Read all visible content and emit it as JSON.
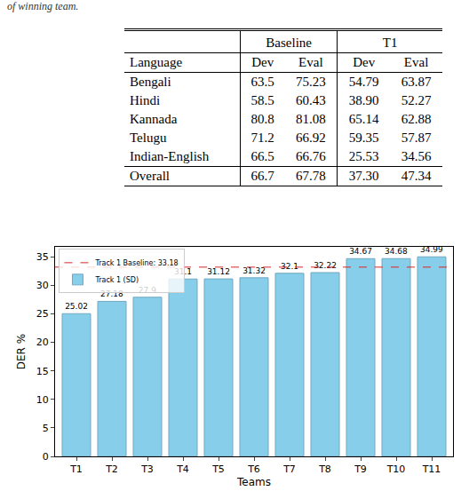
{
  "caption": "of winning team.",
  "table": {
    "header": [
      "",
      "Baseline",
      "T1"
    ],
    "subheader": [
      "Language",
      "Dev",
      "Eval",
      "Dev",
      "Eval"
    ],
    "rows": [
      [
        "Bengali",
        "63.5",
        "75.23",
        "54.79",
        "63.87"
      ],
      [
        "Hindi",
        "58.5",
        "60.43",
        "38.90",
        "52.27"
      ],
      [
        "Kannada",
        "80.8",
        "81.08",
        "65.14",
        "62.88"
      ],
      [
        "Telugu",
        "71.2",
        "66.92",
        "59.35",
        "57.87"
      ],
      [
        "Indian-English",
        "66.5",
        "66.76",
        "25.53",
        "34.56"
      ]
    ],
    "footer": [
      "Overall",
      "66.7",
      "67.78",
      "37.30",
      "47.34"
    ]
  },
  "chart_data": {
    "type": "bar",
    "categories": [
      "T1",
      "T2",
      "T3",
      "T4",
      "T5",
      "T6",
      "T7",
      "T8",
      "T9",
      "T10",
      "T11"
    ],
    "series": [
      {
        "name": "Track 1 (SD)",
        "color": "#87ceeb",
        "values": [
          25.02,
          27.18,
          27.9,
          31.1,
          31.12,
          31.32,
          32.1,
          32.22,
          34.67,
          34.68,
          34.99
        ]
      }
    ],
    "reference_line": {
      "value": 33.18,
      "label": "Track 1 Baseline: 33.18",
      "color": "#d62728",
      "line_style": "dash"
    },
    "x_label": "Teams",
    "y_label": "DER %",
    "ylim": [
      0,
      36.74
    ],
    "yticks": [
      0,
      5,
      10,
      15,
      20,
      25,
      30,
      35
    ],
    "data_labels": true,
    "legend": "upper left",
    "grid": false
  }
}
